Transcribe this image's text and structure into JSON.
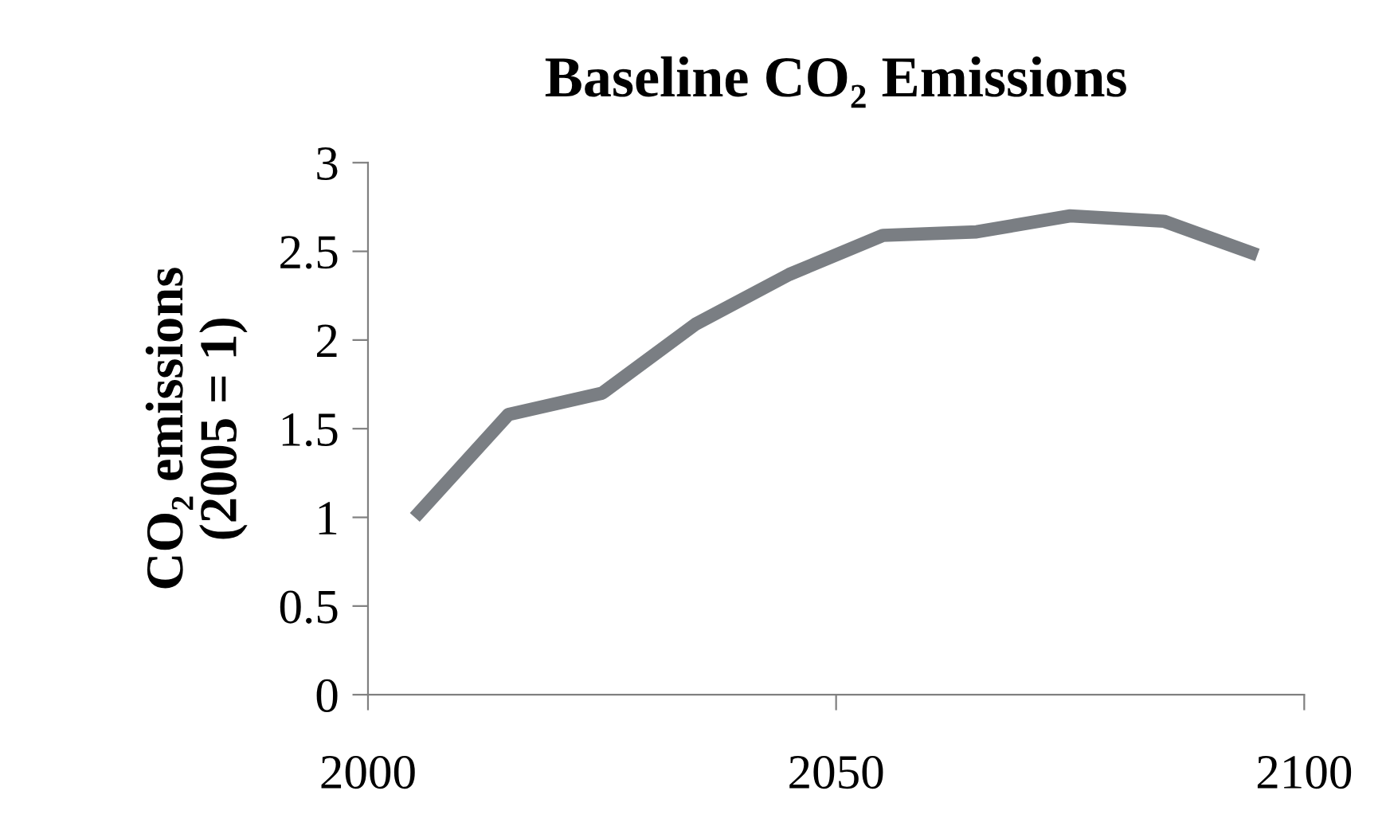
{
  "chart_data": {
    "type": "line",
    "title": "Baseline CO₂ Emissions",
    "ylabel": "CO₂ emissions\n(2005 = 1)",
    "x": [
      2005,
      2015,
      2025,
      2035,
      2045,
      2055,
      2065,
      2075,
      2085,
      2095
    ],
    "series": [
      {
        "color": "#7a7e83",
        "values": [
          1.0,
          1.58,
          1.7,
          2.09,
          2.37,
          2.59,
          2.61,
          2.7,
          2.67,
          2.48
        ]
      }
    ],
    "xlim": [
      2000,
      2100
    ],
    "xticks": [
      2000,
      2050,
      2100
    ],
    "ylim": [
      0,
      3
    ],
    "yticks": [
      0,
      0.5,
      1,
      1.5,
      2,
      2.5,
      3
    ],
    "grid": false,
    "legend": false,
    "marker": "none",
    "line_style": "solid"
  }
}
